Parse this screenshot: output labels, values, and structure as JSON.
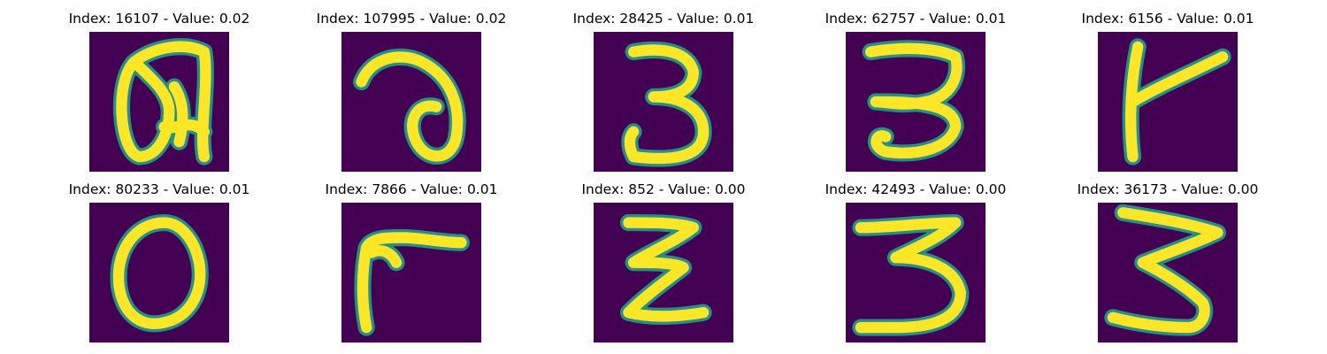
{
  "palette": {
    "background": "#440154",
    "stroke": "#fde725",
    "edge": "#21918c"
  },
  "panels": [
    {
      "title": "Index: 16107 - Value: 0.02",
      "glyph": "a-loop-icon"
    },
    {
      "title": "Index: 107995 - Value: 0.02",
      "glyph": "a-hook-icon"
    },
    {
      "title": "Index: 28425 - Value: 0.01",
      "glyph": "three-icon"
    },
    {
      "title": "Index: 62757 - Value: 0.01",
      "glyph": "three-flat-icon"
    },
    {
      "title": "Index: 6156 - Value: 0.01",
      "glyph": "t-hook-icon"
    },
    {
      "title": "Index: 80233 - Value: 0.01",
      "glyph": "zero-icon"
    },
    {
      "title": "Index: 7866 - Value: 0.01",
      "glyph": "r-hook-icon"
    },
    {
      "title": "Index: 852 - Value: 0.00",
      "glyph": "zigzag-icon"
    },
    {
      "title": "Index: 42493 - Value: 0.00",
      "glyph": "three-wide-icon"
    },
    {
      "title": "Index: 36173 - Value: 0.00",
      "glyph": "three-slant-icon"
    }
  ]
}
